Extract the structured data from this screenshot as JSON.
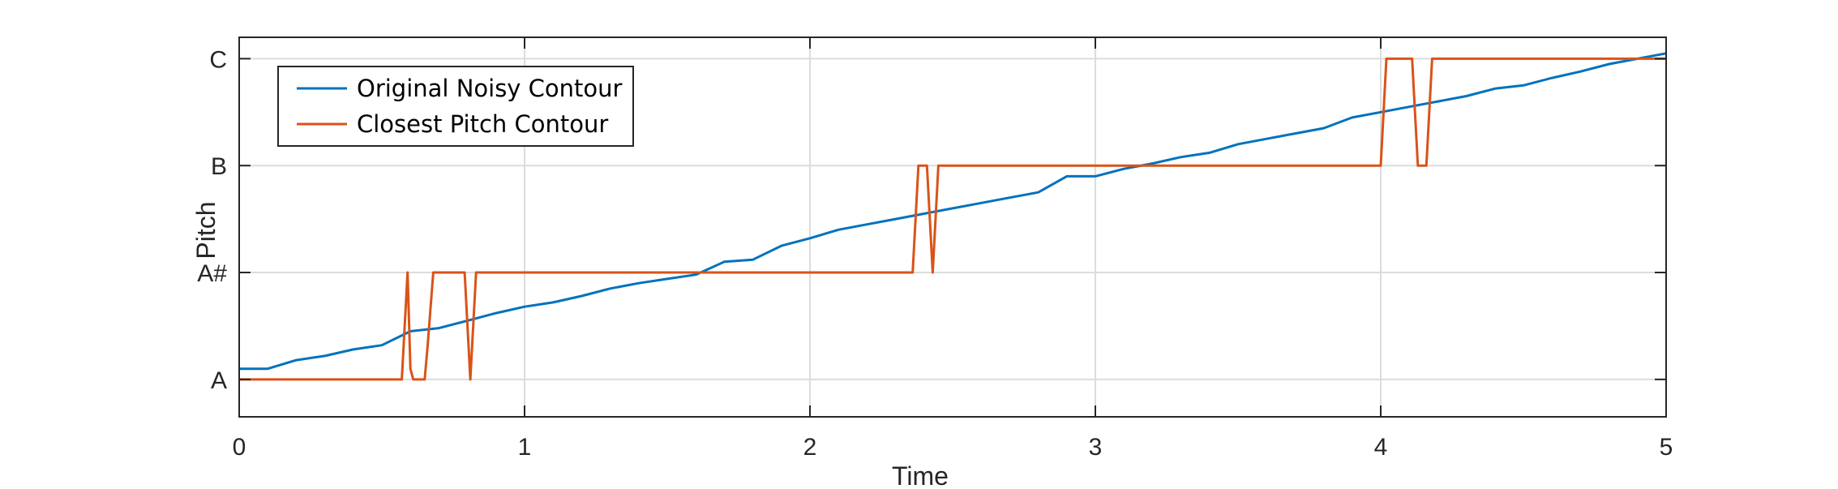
{
  "chart_data": {
    "type": "line",
    "title": "",
    "xlabel": "Time",
    "ylabel": "Pitch",
    "xlim": [
      0,
      5
    ],
    "ylim": [
      -0.35,
      3.2
    ],
    "x_ticks": [
      0,
      1,
      2,
      3,
      4,
      5
    ],
    "x_tick_labels": [
      "0",
      "1",
      "2",
      "3",
      "4",
      "5"
    ],
    "y_ticks": [
      0,
      1,
      2,
      3
    ],
    "y_tick_labels": [
      "A",
      "A#",
      "B",
      "C"
    ],
    "grid": true,
    "legend_position": "top-left",
    "series": [
      {
        "name": "Original Noisy Contour",
        "color": "#0072BD",
        "x": [
          0,
          0.1,
          0.2,
          0.3,
          0.4,
          0.5,
          0.6,
          0.7,
          0.8,
          0.9,
          1.0,
          1.1,
          1.2,
          1.3,
          1.4,
          1.5,
          1.6,
          1.7,
          1.8,
          1.9,
          2.0,
          2.1,
          2.2,
          2.3,
          2.4,
          2.5,
          2.6,
          2.7,
          2.8,
          2.9,
          3.0,
          3.1,
          3.2,
          3.3,
          3.4,
          3.5,
          3.6,
          3.7,
          3.8,
          3.9,
          4.0,
          4.1,
          4.2,
          4.3,
          4.4,
          4.5,
          4.6,
          4.7,
          4.8,
          4.9,
          5.0
        ],
        "values": [
          0.1,
          0.1,
          0.18,
          0.22,
          0.28,
          0.32,
          0.45,
          0.48,
          0.55,
          0.62,
          0.68,
          0.72,
          0.78,
          0.85,
          0.9,
          0.94,
          0.98,
          1.1,
          1.12,
          1.25,
          1.32,
          1.4,
          1.45,
          1.5,
          1.55,
          1.6,
          1.65,
          1.7,
          1.75,
          1.9,
          1.9,
          1.97,
          2.02,
          2.08,
          2.12,
          2.2,
          2.25,
          2.3,
          2.35,
          2.45,
          2.5,
          2.55,
          2.6,
          2.65,
          2.72,
          2.75,
          2.82,
          2.88,
          2.95,
          3.0,
          3.05
        ]
      },
      {
        "name": "Closest Pitch Contour",
        "color": "#D95319",
        "x": [
          0,
          0.57,
          0.59,
          0.6,
          0.61,
          0.63,
          0.65,
          0.66,
          0.68,
          0.7,
          0.79,
          0.81,
          0.83,
          2.36,
          2.38,
          2.41,
          2.43,
          2.45,
          4.0,
          4.02,
          4.11,
          4.13,
          4.16,
          4.18,
          5.0
        ],
        "values": [
          0,
          0,
          1,
          0.1,
          0,
          0,
          0,
          0.3,
          1,
          1,
          1,
          0,
          1,
          1,
          2,
          2,
          1,
          2,
          2,
          3,
          3,
          2,
          2,
          3,
          3
        ]
      }
    ]
  }
}
